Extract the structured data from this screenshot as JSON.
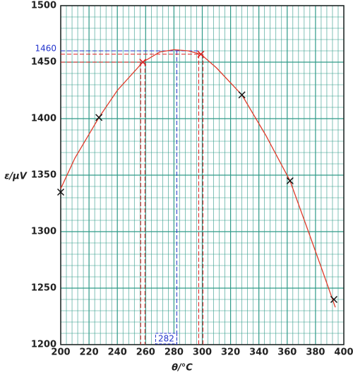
{
  "chart_data": {
    "type": "scatter",
    "x_label": "θ/°C",
    "y_label": "ε/μV",
    "xlim": [
      200,
      400
    ],
    "xticks": [
      200,
      220,
      240,
      260,
      280,
      300,
      320,
      340,
      360,
      380,
      400
    ],
    "ylim": [
      1200,
      1500
    ],
    "yticks": [
      1200,
      1250,
      1300,
      1350,
      1400,
      1450,
      1500
    ],
    "grid": true,
    "grid_color": "#2f9a88",
    "points": {
      "x": [
        200,
        227,
        328,
        362,
        393
      ],
      "y": [
        1335,
        1401,
        1421,
        1345,
        1240
      ],
      "color": "#111111"
    },
    "highlight_points": {
      "x": [
        258,
        299
      ],
      "y": [
        1450,
        1457
      ],
      "color": "#e02020"
    },
    "curve": {
      "x": [
        200,
        210,
        227,
        240,
        258,
        270,
        280,
        290,
        299,
        310,
        328,
        345,
        362,
        375,
        385,
        394
      ],
      "y": [
        1338,
        1365,
        1401,
        1425,
        1450,
        1459,
        1461,
        1460,
        1457,
        1445,
        1421,
        1385,
        1345,
        1300,
        1265,
        1233
      ],
      "color": "#e03a2a"
    },
    "annotations": {
      "y_mark": 1460,
      "x_mark": 282,
      "color": "#2233cc"
    }
  }
}
